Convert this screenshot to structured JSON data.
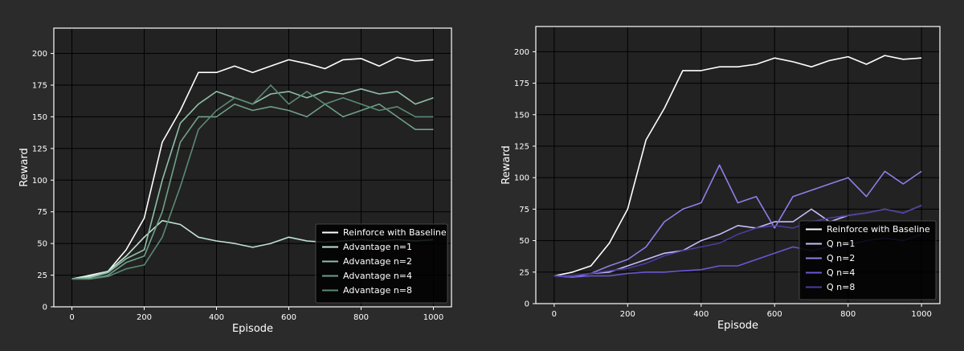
{
  "chart_data": [
    {
      "type": "line",
      "xlabel": "Episode",
      "ylabel": "Reward",
      "xlim": [
        -50,
        1050
      ],
      "ylim": [
        0,
        220
      ],
      "xticks": [
        0,
        200,
        400,
        600,
        800,
        1000
      ],
      "yticks": [
        0,
        25,
        50,
        75,
        100,
        125,
        150,
        175,
        200
      ],
      "grid": true,
      "legend_position": "bottom-right",
      "x": [
        0,
        50,
        100,
        150,
        200,
        250,
        300,
        350,
        400,
        450,
        500,
        550,
        600,
        650,
        700,
        750,
        800,
        850,
        900,
        950,
        1000
      ],
      "series": [
        {
          "name": "Reinforce with Baseline",
          "color": "#ffffff",
          "values": [
            22,
            25,
            28,
            45,
            70,
            130,
            155,
            185,
            185,
            190,
            185,
            190,
            195,
            192,
            188,
            195,
            196,
            190,
            197,
            194,
            195
          ]
        },
        {
          "name": "Advantage n=1",
          "color": "#bfe3d1",
          "values": [
            22,
            24,
            28,
            40,
            55,
            68,
            65,
            55,
            52,
            50,
            47,
            50,
            55,
            52,
            51,
            52,
            53,
            52,
            53,
            52,
            53
          ]
        },
        {
          "name": "Advantage n=2",
          "color": "#8fbfa8",
          "values": [
            22,
            23,
            27,
            38,
            45,
            100,
            145,
            160,
            170,
            165,
            160,
            168,
            170,
            165,
            170,
            168,
            172,
            168,
            170,
            160,
            165
          ]
        },
        {
          "name": "Advantage n=4",
          "color": "#6f9f89",
          "values": [
            22,
            22,
            25,
            35,
            40,
            75,
            130,
            150,
            150,
            160,
            155,
            158,
            155,
            150,
            160,
            150,
            155,
            160,
            150,
            140,
            140
          ]
        },
        {
          "name": "Advantage n=8",
          "color": "#5a8a74",
          "values": [
            22,
            22,
            24,
            30,
            33,
            55,
            95,
            140,
            155,
            165,
            160,
            175,
            160,
            170,
            160,
            165,
            160,
            155,
            158,
            150,
            150
          ]
        }
      ]
    },
    {
      "type": "line",
      "xlabel": "Episode",
      "ylabel": "Reward",
      "xlim": [
        -50,
        1050
      ],
      "ylim": [
        0,
        220
      ],
      "xticks": [
        0,
        200,
        400,
        600,
        800,
        1000
      ],
      "yticks": [
        0,
        25,
        50,
        75,
        100,
        125,
        150,
        175,
        200
      ],
      "grid": true,
      "legend_position": "bottom-right",
      "x": [
        0,
        50,
        100,
        150,
        200,
        250,
        300,
        350,
        400,
        450,
        500,
        550,
        600,
        650,
        700,
        750,
        800,
        850,
        900,
        950,
        1000
      ],
      "series": [
        {
          "name": "Reinforce with Baseline",
          "color": "#ffffff",
          "values": [
            22,
            25,
            30,
            48,
            75,
            130,
            155,
            185,
            185,
            188,
            188,
            190,
            195,
            192,
            188,
            193,
            196,
            190,
            197,
            194,
            195
          ]
        },
        {
          "name": "Q n=1",
          "color": "#c7bdfa",
          "values": [
            22,
            21,
            24,
            25,
            30,
            35,
            40,
            42,
            50,
            55,
            62,
            60,
            65,
            65,
            75,
            65,
            70,
            72,
            75,
            72,
            78
          ]
        },
        {
          "name": "Q n=2",
          "color": "#8f7ee8",
          "values": [
            22,
            22,
            24,
            30,
            35,
            45,
            65,
            75,
            80,
            110,
            80,
            85,
            60,
            85,
            90,
            95,
            100,
            85,
            105,
            95,
            105
          ]
        },
        {
          "name": "Q n=4",
          "color": "#6a56d6",
          "values": [
            22,
            21,
            22,
            22,
            24,
            25,
            25,
            26,
            27,
            30,
            30,
            35,
            40,
            45,
            42,
            45,
            47,
            50,
            52,
            50,
            55
          ]
        },
        {
          "name": "Q n=8",
          "color": "#4b3ca0",
          "values": [
            22,
            22,
            24,
            26,
            28,
            32,
            38,
            42,
            45,
            48,
            55,
            60,
            62,
            60,
            65,
            68,
            70,
            72,
            75,
            72,
            78
          ]
        }
      ]
    }
  ]
}
